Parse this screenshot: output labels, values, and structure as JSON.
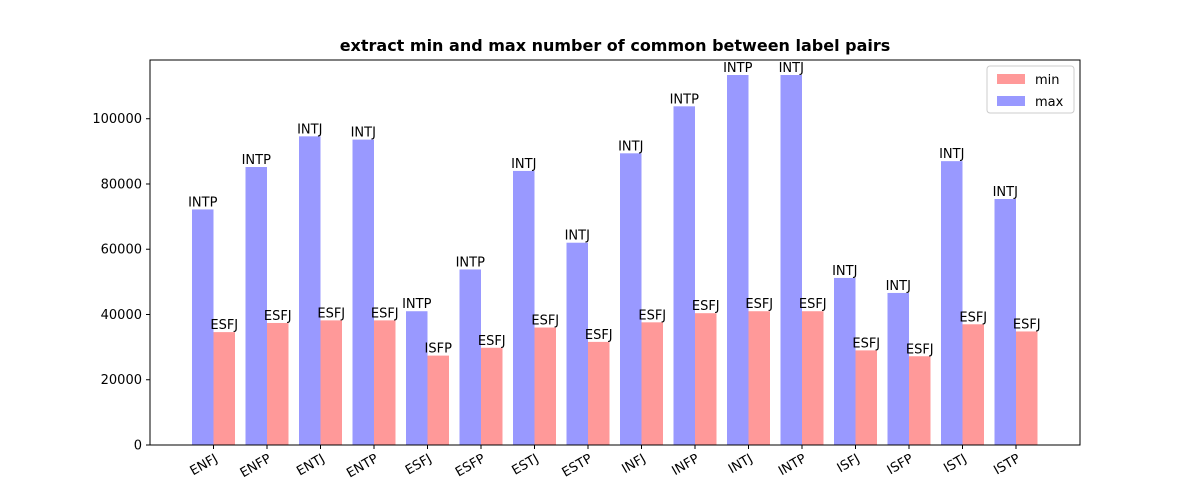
{
  "chart_data": {
    "type": "bar",
    "title": "extract min and max number of common between label pairs",
    "xlabel": "",
    "ylabel": "",
    "ylim": [
      0,
      118000
    ],
    "yticks": [
      0,
      20000,
      40000,
      60000,
      80000,
      100000
    ],
    "grid": false,
    "legend_position": "top-right",
    "categories": [
      "ENFJ",
      "ENFP",
      "ENTJ",
      "ENTP",
      "ESFJ",
      "ESFP",
      "ESTJ",
      "ESTP",
      "INFJ",
      "INFP",
      "INTJ",
      "INTP",
      "ISFJ",
      "ISFP",
      "ISTJ",
      "ISTP"
    ],
    "series": [
      {
        "name": "max",
        "color": "#9999ff",
        "values": [
          72200,
          85200,
          94600,
          93600,
          41000,
          53800,
          84000,
          62000,
          89400,
          103800,
          113400,
          113400,
          51200,
          46600,
          87000,
          75400
        ],
        "labels": [
          "INTP",
          "INTP",
          "INTJ",
          "INTJ",
          "INTP",
          "INTP",
          "INTJ",
          "INTJ",
          "INTJ",
          "INTP",
          "INTP",
          "INTJ",
          "INTJ",
          "INTJ",
          "INTJ",
          "INTJ"
        ]
      },
      {
        "name": "min",
        "color": "#ff9999",
        "values": [
          34600,
          37400,
          38200,
          38200,
          27400,
          29800,
          36000,
          31600,
          37600,
          40400,
          41000,
          41000,
          29000,
          27200,
          37000,
          34800
        ],
        "labels": [
          "ESFJ",
          "ESFJ",
          "ESFJ",
          "ESFJ",
          "ISFP",
          "ESFJ",
          "ESFJ",
          "ESFJ",
          "ESFJ",
          "ESFJ",
          "ESFJ",
          "ESFJ",
          "ESFJ",
          "ESFJ",
          "ESFJ",
          "ESFJ"
        ]
      }
    ],
    "legend_order": [
      "min",
      "max"
    ]
  }
}
